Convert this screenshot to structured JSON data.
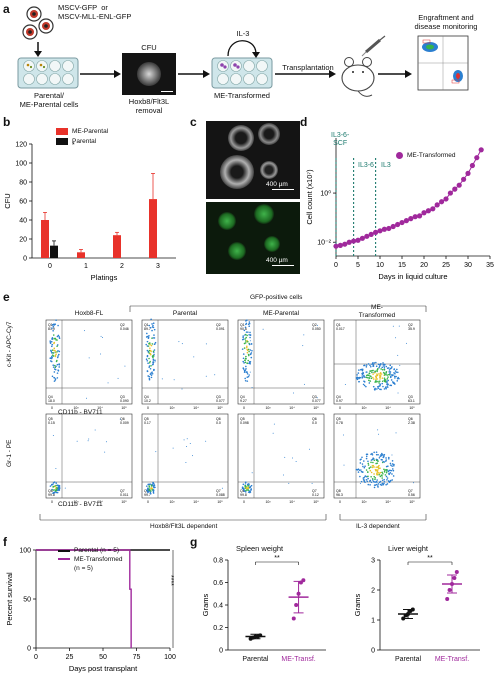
{
  "panels": {
    "a": "a",
    "b": "b",
    "c": "c",
    "d": "d",
    "e": "e",
    "f": "f",
    "g": "g"
  },
  "panel_a": {
    "vectors": "MSCV-GFP  or\nMSCV-MLL-ENL-GFP",
    "plate1_label": "Parental/\nME-Parental cells",
    "cfu_title": "CFU",
    "cfu_caption": "Hoxb8/Flt3L\nremoval",
    "il3": "IL-3",
    "plate2_label": "ME-Transformed",
    "transplant": "Transplantation",
    "monitor": "Engraftment and\ndisease monitoring"
  },
  "panel_b": {
    "ylabel": "CFU",
    "xlabel": "Platings",
    "legend": [
      "ME-Parental",
      "Parental"
    ],
    "colors": {
      "me_parental": "#e8322a",
      "parental": "#111111"
    }
  },
  "panel_c": {
    "scale1": "400 µm",
    "scale2": "400 µm"
  },
  "panel_d": {
    "ylabel": "Cell count (x10⁷)",
    "xlabel": "Days in liquid culture",
    "legend": "ME-Transformed",
    "annot": [
      "IL3-6-\nSCF",
      "IL3-6",
      "IL3"
    ],
    "ytick_labels": [
      "10⁰",
      "10⁻²"
    ],
    "color": "#a0299c",
    "annot_color": "#1d7a6e"
  },
  "panel_e": {
    "gfp_header": "GFP-positive cells",
    "col_titles": [
      "Hoxb8-FL",
      "Parental",
      "ME-Parental",
      "ME-\nTransformed"
    ],
    "row1_ylabel": "c-Kit - APC-Cy7",
    "row2_ylabel": "Gr-1 - PE",
    "xlabel": "CD11b - BV711",
    "bottom_left": "Hoxb8/Flt3L dependent",
    "bottom_right": "IL-3 dependent",
    "row1_quads": [
      [
        "Q1",
        "Q2",
        "Q3",
        "Q4",
        "81.9",
        "0.046",
        "0.090",
        "18.0"
      ],
      [
        "Q1",
        "Q2",
        "Q3",
        "Q4",
        "89.7",
        "0.091",
        "0.077",
        "10.2"
      ],
      [
        "Q1",
        "Q2",
        "Q3",
        "Q4",
        "90.6",
        "0.050",
        "0.077",
        "9.27"
      ],
      [
        "Q1",
        "Q2",
        "Q3",
        "Q4",
        "0.017",
        "35.9",
        "63.1",
        "0.97"
      ]
    ],
    "row2_quads": [
      [
        "Q5",
        "Q6",
        "Q7",
        "Q8",
        "0.15",
        "0.009",
        "0.011",
        "99.8"
      ],
      [
        "Q5",
        "Q6",
        "Q7",
        "Q8",
        "0.17",
        "0.0",
        "0.088",
        "99.7"
      ],
      [
        "Q5",
        "Q6",
        "Q7",
        "Q8",
        "0.098",
        "0.0",
        "0.12",
        "99.8"
      ],
      [
        "Q5",
        "Q6",
        "Q7",
        "Q8",
        "0.78",
        "2.38",
        "0.56",
        "96.3"
      ]
    ]
  },
  "panel_f": {
    "ylabel": "Percent survival",
    "xlabel": "Days post transplant",
    "legend": [
      "Parental (n = 5)",
      "ME-Transformed\n(n = 5)"
    ],
    "sig": "****",
    "colors": {
      "parental": "#111111",
      "transformed": "#a0299c"
    }
  },
  "panel_g": {
    "spleen_title": "Spleen weight",
    "liver_title": "Liver weight",
    "ylabel": "Grams",
    "sig": "**",
    "x_labels": [
      "Parental",
      "ME-Transf."
    ],
    "colors": {
      "parental": "#111111",
      "transformed": "#a0299c"
    }
  },
  "chart_data": [
    {
      "type": "bar",
      "categories": [
        "0",
        "1",
        "2",
        "3"
      ],
      "series": [
        {
          "name": "ME-Parental",
          "values": [
            40,
            6,
            24,
            62
          ],
          "errors": [
            8,
            3,
            3,
            27
          ]
        },
        {
          "name": "Parental",
          "values": [
            13,
            0,
            0,
            0
          ],
          "errors": [
            5,
            0,
            0,
            0
          ]
        }
      ],
      "xlabel": "Platings",
      "ylabel": "CFU",
      "ylim": [
        0,
        120
      ],
      "yticks": [
        0,
        20,
        40,
        60,
        80,
        100,
        120
      ]
    },
    {
      "type": "scatter",
      "series": [
        {
          "name": "ME-Transformed",
          "x": [
            0,
            1,
            2,
            3,
            4,
            5,
            6,
            7,
            8,
            9,
            10,
            11,
            12,
            13,
            14,
            15,
            16,
            17,
            18,
            19,
            20,
            21,
            22,
            23,
            24,
            25,
            26,
            27,
            28,
            29,
            30,
            31,
            32,
            33
          ],
          "y": [
            -0.35,
            -0.33,
            -0.3,
            -0.25,
            -0.22,
            -0.2,
            -0.15,
            -0.1,
            -0.05,
            0.0,
            0.04,
            0.08,
            0.1,
            0.15,
            0.2,
            0.25,
            0.3,
            0.35,
            0.4,
            0.42,
            0.5,
            0.55,
            0.6,
            0.7,
            0.78,
            0.85,
            1.0,
            1.1,
            1.2,
            1.35,
            1.5,
            1.7,
            1.9,
            2.1
          ]
        }
      ],
      "xlabel": "Days in liquid culture",
      "ylabel": "Cell count (x10⁷)",
      "xlim": [
        0,
        35
      ],
      "xticks": [
        0,
        5,
        10,
        15,
        20,
        25,
        30,
        35
      ],
      "annotations": [
        {
          "x": 0,
          "text": "IL3-6-SCF"
        },
        {
          "x": 4,
          "text": "IL3-6"
        },
        {
          "x": 9,
          "text": "IL3"
        }
      ]
    },
    {
      "type": "line",
      "series": [
        {
          "name": "Parental (n = 5)",
          "x": [
            0,
            100
          ],
          "y": [
            100,
            100
          ]
        },
        {
          "name": "ME-Transformed (n = 5)",
          "x": [
            0,
            70,
            70,
            71,
            71
          ],
          "y": [
            100,
            100,
            60,
            60,
            0
          ]
        }
      ],
      "xlabel": "Days post transplant",
      "ylabel": "Percent survival",
      "xlim": [
        0,
        100
      ],
      "ylim": [
        0,
        100
      ],
      "xticks": [
        0,
        25,
        50,
        75,
        100
      ],
      "yticks": [
        0,
        50,
        100
      ]
    },
    {
      "type": "scatter",
      "title": "Spleen weight",
      "categories": [
        "Parental",
        "ME-Transf."
      ],
      "series": [
        {
          "name": "Parental",
          "values": [
            0.1,
            0.11,
            0.12,
            0.12,
            0.13
          ],
          "mean": 0.12,
          "sd": 0.02
        },
        {
          "name": "ME-Transf.",
          "values": [
            0.28,
            0.4,
            0.5,
            0.6,
            0.62
          ],
          "mean": 0.47,
          "sd": 0.14
        }
      ],
      "ylabel": "Grams",
      "ylim": [
        0,
        0.8
      ],
      "yticks": [
        0,
        0.2,
        0.4,
        0.6,
        0.8
      ]
    },
    {
      "type": "scatter",
      "title": "Liver weight",
      "categories": [
        "Parental",
        "ME-Transf."
      ],
      "series": [
        {
          "name": "Parental",
          "values": [
            1.05,
            1.15,
            1.2,
            1.3,
            1.35
          ],
          "mean": 1.2,
          "sd": 0.15
        },
        {
          "name": "ME-Transf.",
          "values": [
            1.7,
            2.0,
            2.2,
            2.4,
            2.6
          ],
          "mean": 2.2,
          "sd": 0.3
        }
      ],
      "ylabel": "Grams",
      "ylim": [
        0,
        3
      ],
      "yticks": [
        0,
        1,
        2,
        3
      ]
    }
  ]
}
